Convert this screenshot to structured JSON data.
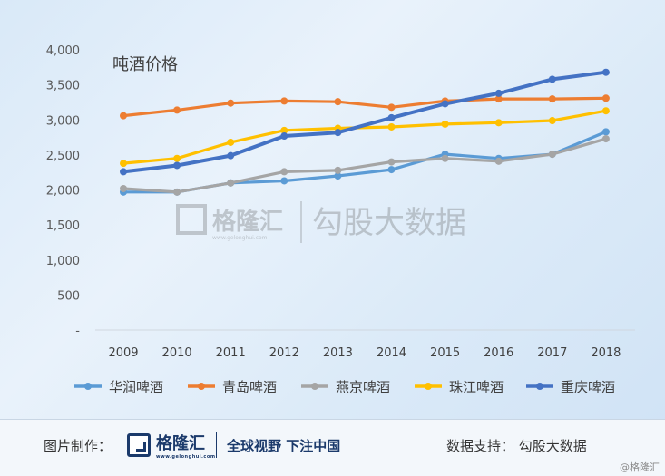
{
  "chart_data": {
    "type": "line",
    "title": "吨酒价格",
    "xlabel": "",
    "ylabel": "",
    "categories": [
      "2009",
      "2010",
      "2011",
      "2012",
      "2013",
      "2014",
      "2015",
      "2016",
      "2017",
      "2018"
    ],
    "ylim": [
      0,
      4000
    ],
    "yticks": [
      0,
      500,
      1000,
      1500,
      2000,
      2500,
      3000,
      3500,
      4000
    ],
    "ytick_labels": [
      "-",
      "500",
      "1,000",
      "1,500",
      "2,000",
      "2,500",
      "3,000",
      "3,500",
      "4,000"
    ],
    "grid": false,
    "legend_position": "bottom",
    "series": [
      {
        "name": "华润啤酒",
        "color": "#5b9bd5",
        "values": [
          1970,
          1970,
          2100,
          2130,
          2200,
          2290,
          2510,
          2450,
          2510,
          2830
        ]
      },
      {
        "name": "青岛啤酒",
        "color": "#ed7d31",
        "values": [
          3060,
          3140,
          3240,
          3270,
          3260,
          3180,
          3270,
          3300,
          3300,
          3310
        ]
      },
      {
        "name": "燕京啤酒",
        "color": "#a5a5a5",
        "values": [
          2020,
          1970,
          2100,
          2260,
          2280,
          2400,
          2450,
          2410,
          2510,
          2730
        ]
      },
      {
        "name": "珠江啤酒",
        "color": "#ffc000",
        "values": [
          2380,
          2450,
          2680,
          2850,
          2880,
          2900,
          2940,
          2960,
          2990,
          3130
        ]
      },
      {
        "name": "重庆啤酒",
        "color": "#4472c4",
        "values": [
          2260,
          2350,
          2490,
          2770,
          2820,
          3030,
          3230,
          3380,
          3580,
          3680
        ]
      }
    ]
  },
  "watermark": {
    "brand": "格隆汇",
    "brand_sub": "www.gelonghui.com",
    "partner": "勾股大数据"
  },
  "footer": {
    "made_by_label": "图片制作：",
    "brand": "格隆汇",
    "brand_sub": "www.gelonghui.com",
    "slogan": "全球视野 下注中国",
    "data_support": "数据支持：  勾股大数据",
    "corner_mark": "@格隆汇"
  }
}
